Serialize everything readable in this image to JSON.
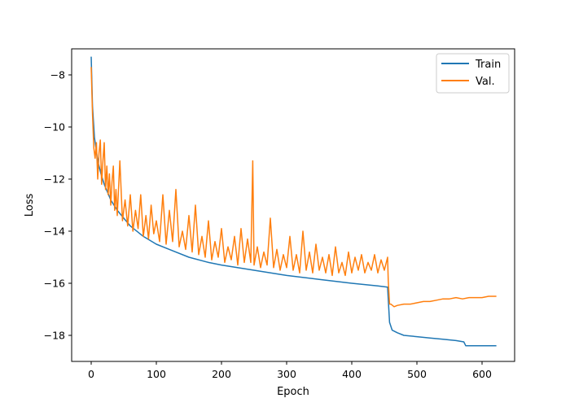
{
  "chart_data": {
    "type": "line",
    "title": "",
    "xlabel": "Epoch",
    "ylabel": "Loss",
    "xlim": [
      -30,
      650
    ],
    "ylim": [
      -19.0,
      -7.0
    ],
    "xticks": [
      0,
      100,
      200,
      300,
      400,
      500,
      600
    ],
    "yticks": [
      -18,
      -16,
      -14,
      -12,
      -10,
      -8
    ],
    "xtick_labels": [
      "0",
      "100",
      "200",
      "300",
      "400",
      "500",
      "600"
    ],
    "ytick_labels": [
      "−18",
      "−16",
      "−14",
      "−12",
      "−10",
      "−8"
    ],
    "grid": false,
    "legend_position": "top-right",
    "series": [
      {
        "name": "Train",
        "color": "#1f77b4",
        "x": [
          0,
          2,
          5,
          10,
          15,
          20,
          30,
          40,
          50,
          60,
          80,
          100,
          120,
          150,
          180,
          200,
          250,
          300,
          350,
          400,
          440,
          455,
          456,
          458,
          462,
          470,
          480,
          500,
          520,
          540,
          560,
          572,
          575,
          590,
          610,
          622
        ],
        "y": [
          -7.3,
          -9.2,
          -10.4,
          -11.3,
          -11.8,
          -12.2,
          -12.8,
          -13.2,
          -13.5,
          -13.8,
          -14.2,
          -14.5,
          -14.7,
          -15.0,
          -15.2,
          -15.3,
          -15.5,
          -15.7,
          -15.85,
          -16.0,
          -16.1,
          -16.15,
          -16.6,
          -17.5,
          -17.8,
          -17.9,
          -18.0,
          -18.05,
          -18.1,
          -18.15,
          -18.2,
          -18.25,
          -18.4,
          -18.4,
          -18.4,
          -18.4
        ]
      },
      {
        "name": "Val.",
        "color": "#ff7f0e",
        "x": [
          0,
          2,
          4,
          6,
          8,
          10,
          12,
          14,
          16,
          18,
          20,
          22,
          24,
          26,
          28,
          30,
          32,
          34,
          36,
          38,
          40,
          44,
          48,
          52,
          56,
          60,
          64,
          68,
          72,
          76,
          80,
          84,
          88,
          92,
          96,
          100,
          105,
          110,
          115,
          120,
          125,
          130,
          135,
          140,
          145,
          150,
          155,
          160,
          165,
          170,
          175,
          180,
          185,
          190,
          195,
          200,
          205,
          210,
          215,
          220,
          225,
          230,
          235,
          240,
          245,
          248,
          250,
          255,
          260,
          265,
          270,
          275,
          280,
          285,
          290,
          295,
          300,
          305,
          310,
          315,
          320,
          325,
          330,
          335,
          340,
          345,
          350,
          355,
          360,
          365,
          370,
          375,
          380,
          385,
          390,
          395,
          400,
          405,
          410,
          415,
          420,
          425,
          430,
          435,
          440,
          445,
          450,
          455,
          456,
          458,
          460,
          465,
          470,
          480,
          490,
          500,
          510,
          520,
          530,
          540,
          550,
          560,
          570,
          580,
          590,
          600,
          610,
          622
        ],
        "y": [
          -7.7,
          -9.5,
          -10.8,
          -11.2,
          -10.6,
          -12.0,
          -11.0,
          -10.5,
          -12.2,
          -11.3,
          -10.6,
          -12.4,
          -11.5,
          -12.6,
          -11.8,
          -13.0,
          -12.1,
          -11.5,
          -13.2,
          -12.4,
          -13.4,
          -11.3,
          -13.6,
          -12.8,
          -13.8,
          -12.6,
          -14.0,
          -13.2,
          -13.9,
          -12.6,
          -14.2,
          -13.4,
          -14.3,
          -13.0,
          -14.1,
          -13.6,
          -14.4,
          -12.6,
          -14.5,
          -13.2,
          -14.4,
          -12.4,
          -14.6,
          -14.0,
          -14.7,
          -13.4,
          -14.8,
          -13.0,
          -14.9,
          -14.2,
          -15.0,
          -13.6,
          -15.1,
          -14.4,
          -15.0,
          -13.9,
          -15.2,
          -14.6,
          -15.1,
          -14.2,
          -15.3,
          -13.9,
          -15.2,
          -14.3,
          -15.2,
          -11.3,
          -15.3,
          -14.6,
          -15.4,
          -14.8,
          -15.3,
          -13.5,
          -15.4,
          -14.7,
          -15.5,
          -14.9,
          -15.4,
          -14.2,
          -15.5,
          -14.9,
          -15.6,
          -14.0,
          -15.5,
          -14.8,
          -15.6,
          -14.5,
          -15.5,
          -15.0,
          -15.6,
          -14.9,
          -15.7,
          -14.6,
          -15.6,
          -15.2,
          -15.7,
          -14.8,
          -15.6,
          -15.0,
          -15.5,
          -14.9,
          -15.6,
          -15.2,
          -15.5,
          -14.9,
          -15.6,
          -15.1,
          -15.5,
          -15.0,
          -15.9,
          -16.8,
          -16.8,
          -16.9,
          -16.85,
          -16.8,
          -16.8,
          -16.75,
          -16.7,
          -16.7,
          -16.65,
          -16.6,
          -16.6,
          -16.55,
          -16.6,
          -16.55,
          -16.55,
          -16.55,
          -16.5,
          -16.5
        ]
      }
    ]
  }
}
